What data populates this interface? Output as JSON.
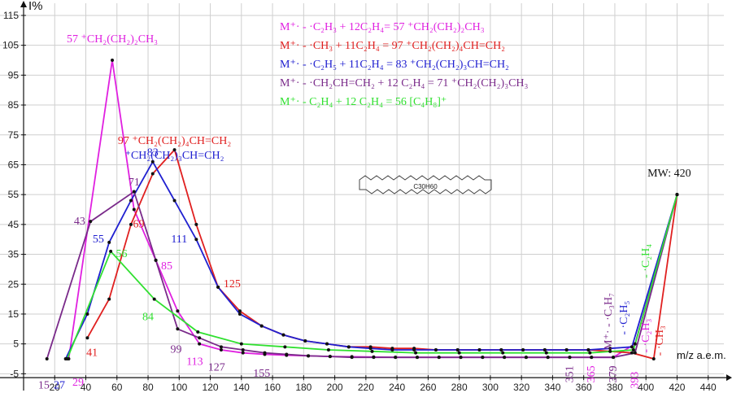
{
  "chart_data": {
    "type": "line",
    "ylabel": "I%",
    "xlabel": "m/z a.e.m.",
    "xlim": [
      0,
      450
    ],
    "ylim": [
      -15,
      120
    ],
    "x_ticks": [
      20,
      40,
      60,
      80,
      100,
      120,
      140,
      160,
      180,
      200,
      220,
      240,
      260,
      280,
      300,
      320,
      340,
      360,
      380,
      400,
      420,
      440
    ],
    "y_ticks": [
      -5,
      5,
      15,
      25,
      35,
      45,
      55,
      65,
      75,
      85,
      95,
      105,
      115
    ],
    "grid": true,
    "molecule_label": "C30H60",
    "mw_label": "MW: 420",
    "series": [
      {
        "color": "#e020e0",
        "points": [
          [
            29,
            0
          ],
          [
            57,
            100
          ],
          [
            71,
            50
          ],
          [
            85,
            33
          ],
          [
            99,
            16
          ],
          [
            113,
            5
          ],
          [
            127,
            3
          ],
          [
            141,
            2
          ],
          [
            155,
            1.5
          ],
          [
            169,
            1.2
          ],
          [
            183,
            1
          ],
          [
            197,
            0.8
          ],
          [
            211,
            0.7
          ],
          [
            225,
            0.6
          ],
          [
            239,
            0.5
          ],
          [
            253,
            0.5
          ],
          [
            267,
            0.5
          ],
          [
            281,
            0.5
          ],
          [
            295,
            0.5
          ],
          [
            309,
            0.5
          ],
          [
            323,
            0.5
          ],
          [
            337,
            0.5
          ],
          [
            351,
            0.5
          ],
          [
            365,
            0.5
          ],
          [
            379,
            0.5
          ],
          [
            393,
            5
          ],
          [
            420,
            55
          ]
        ]
      },
      {
        "color": "#e02020",
        "points": [
          [
            41,
            7
          ],
          [
            55,
            20
          ],
          [
            69,
            45
          ],
          [
            83,
            62
          ],
          [
            97,
            70
          ],
          [
            111,
            45
          ],
          [
            125,
            24
          ],
          [
            139,
            16
          ],
          [
            153,
            11
          ],
          [
            167,
            8
          ],
          [
            181,
            6
          ],
          [
            195,
            5
          ],
          [
            209,
            4
          ],
          [
            223,
            4
          ],
          [
            237,
            3.5
          ],
          [
            251,
            3.5
          ],
          [
            265,
            3
          ],
          [
            279,
            3
          ],
          [
            293,
            3
          ],
          [
            307,
            3
          ],
          [
            321,
            3
          ],
          [
            335,
            3
          ],
          [
            349,
            3
          ],
          [
            363,
            3
          ],
          [
            377,
            2.5
          ],
          [
            391,
            2
          ],
          [
            405,
            0
          ],
          [
            420,
            55
          ]
        ]
      },
      {
        "color": "#2020d0",
        "points": [
          [
            27,
            0
          ],
          [
            41,
            15
          ],
          [
            55,
            39
          ],
          [
            69,
            53
          ],
          [
            83,
            66
          ],
          [
            97,
            53
          ],
          [
            111,
            40
          ],
          [
            125,
            24
          ],
          [
            139,
            15
          ],
          [
            153,
            11
          ],
          [
            167,
            8
          ],
          [
            181,
            6
          ],
          [
            195,
            5
          ],
          [
            209,
            4
          ],
          [
            223,
            3.5
          ],
          [
            237,
            3
          ],
          [
            251,
            3
          ],
          [
            265,
            3
          ],
          [
            279,
            3
          ],
          [
            293,
            3
          ],
          [
            307,
            3
          ],
          [
            321,
            3
          ],
          [
            335,
            3
          ],
          [
            349,
            3
          ],
          [
            363,
            3
          ],
          [
            377,
            3.5
          ],
          [
            391,
            4
          ],
          [
            420,
            55
          ]
        ]
      },
      {
        "color": "#7a2a8a",
        "points": [
          [
            15,
            0
          ],
          [
            43,
            46
          ],
          [
            71,
            56
          ],
          [
            85,
            33
          ],
          [
            99,
            10
          ],
          [
            113,
            7
          ],
          [
            127,
            4
          ],
          [
            141,
            3
          ],
          [
            155,
            2
          ],
          [
            169,
            1.5
          ],
          [
            183,
            1
          ],
          [
            197,
            0.8
          ],
          [
            211,
            0.5
          ],
          [
            225,
            0.5
          ],
          [
            239,
            0.5
          ],
          [
            253,
            0.5
          ],
          [
            267,
            0.5
          ],
          [
            281,
            0.5
          ],
          [
            295,
            0.5
          ],
          [
            309,
            0.5
          ],
          [
            323,
            0.5
          ],
          [
            337,
            0.5
          ],
          [
            351,
            0.5
          ],
          [
            365,
            0.5
          ],
          [
            379,
            0.5
          ],
          [
            393,
            2
          ],
          [
            420,
            55
          ]
        ]
      },
      {
        "color": "#30e030",
        "points": [
          [
            28,
            0
          ],
          [
            56,
            36
          ],
          [
            84,
            20
          ],
          [
            112,
            9
          ],
          [
            140,
            5
          ],
          [
            168,
            4
          ],
          [
            196,
            3
          ],
          [
            224,
            2.5
          ],
          [
            252,
            2
          ],
          [
            280,
            2
          ],
          [
            308,
            2
          ],
          [
            336,
            2
          ],
          [
            364,
            2
          ],
          [
            392,
            3
          ],
          [
            420,
            55
          ]
        ]
      }
    ],
    "point_labels": [
      {
        "text": "57 ⁺CH₂(CH₂)₂CH₃",
        "x": 57,
        "y": 106,
        "color": "#e020e0"
      },
      {
        "text": "97 ⁺CH₂(CH₂)₄CH=CH₂",
        "x": 97,
        "y": 72,
        "color": "#e02020"
      },
      {
        "text": "83",
        "x": 83,
        "y": 68,
        "color": "#2020d0"
      },
      {
        "text": "⁺CH₂(CH₂)₃CH=CH₂",
        "x": 97,
        "y": 67,
        "color": "#2020d0"
      },
      {
        "text": "71",
        "x": 71,
        "y": 58,
        "color": "#7a2a8a"
      },
      {
        "text": "43",
        "x": 36,
        "y": 45,
        "color": "#7a2a8a"
      },
      {
        "text": "69",
        "x": 74,
        "y": 44,
        "color": "#e02020"
      },
      {
        "text": "55",
        "x": 48,
        "y": 39,
        "color": "#2020d0"
      },
      {
        "text": "56",
        "x": 63,
        "y": 34,
        "color": "#30e030"
      },
      {
        "text": "111",
        "x": 100,
        "y": 39,
        "color": "#2020d0"
      },
      {
        "text": "85",
        "x": 92,
        "y": 30,
        "color": "#e020e0"
      },
      {
        "text": "125",
        "x": 134,
        "y": 24,
        "color": "#e02020"
      },
      {
        "text": "84",
        "x": 80,
        "y": 13,
        "color": "#30e030"
      },
      {
        "text": "41",
        "x": 44,
        "y": 1,
        "color": "#e02020"
      },
      {
        "text": "99",
        "x": 98,
        "y": 2,
        "color": "#7a2a8a"
      },
      {
        "text": "113",
        "x": 110,
        "y": -2,
        "color": "#e020e0"
      },
      {
        "text": "127",
        "x": 124,
        "y": -4,
        "color": "#7a2a8a"
      },
      {
        "text": "155",
        "x": 153,
        "y": -6,
        "color": "#7a2a8a"
      },
      {
        "text": "15",
        "x": 13,
        "y": -10,
        "color": "#7a2a8a"
      },
      {
        "text": "27",
        "x": 23,
        "y": -10,
        "color": "#2020d0"
      },
      {
        "text": "29",
        "x": 35,
        "y": -9,
        "color": "#e020e0"
      },
      {
        "text": "MW: 420",
        "x": 415,
        "y": 61,
        "color": "#111111"
      }
    ],
    "vertical_labels": [
      {
        "text": "351",
        "x": 353,
        "y": -8,
        "color": "#7a2a8a"
      },
      {
        "text": "365",
        "x": 367,
        "y": -8,
        "color": "#e020e0"
      },
      {
        "text": "379",
        "x": 381,
        "y": -8,
        "color": "#7a2a8a"
      },
      {
        "text": "393",
        "x": 395,
        "y": -10,
        "color": "#e020e0"
      },
      {
        "text": "M⁺· - ·C₃H₇",
        "x": 378,
        "y": 3,
        "color": "#7a2a8a"
      },
      {
        "text": "- ·C₂H₅",
        "x": 388,
        "y": 8,
        "color": "#2020d0"
      },
      {
        "text": "- ·C₂H₄",
        "x": 402,
        "y": 27,
        "color": "#30e030"
      },
      {
        "text": "- ·C₂H₃",
        "x": 402,
        "y": 2,
        "color": "#e020e0"
      },
      {
        "text": "- ·CH₃",
        "x": 411,
        "y": 1,
        "color": "#e02020"
      }
    ],
    "legend": [
      {
        "text": "M⁺· - ·C₂H₃ + 12C₂H₄= 57 ⁺CH₂(CH₂)₂CH₃",
        "color": "#e020e0"
      },
      {
        "text": "M⁺· - ·CH₃ + 11C₂H₄ = 97 ⁺CH₂(CH₂)₄CH=CH₂",
        "color": "#e02020"
      },
      {
        "text": "M⁺· - ·C₂H₅ + 11C₂H₄ = 83 ⁺CH₂(CH₂)₃CH=CH₂",
        "color": "#2020d0"
      },
      {
        "text": "M⁺· - ·CH₂CH=CH₂ + 12 C₂H₄ = 71 ⁺CH₂(CH₂)₃CH₃",
        "color": "#7a2a8a"
      },
      {
        "text": "M⁺· - C₂H₄ + 12 C₂H₄ = 56 [C₄H₈]⁺",
        "color": "#30e030"
      }
    ]
  }
}
